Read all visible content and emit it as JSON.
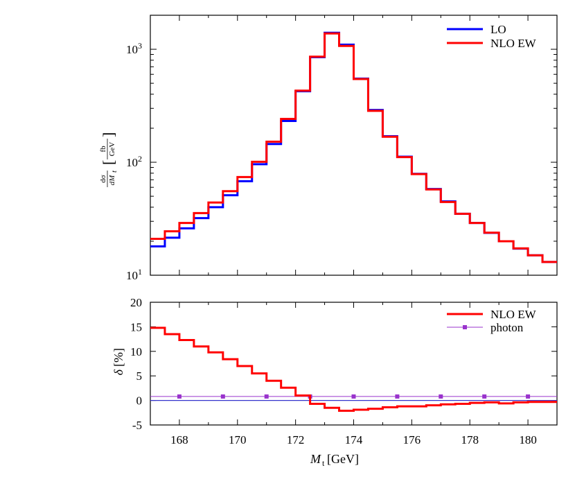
{
  "chart_data": [
    {
      "type": "line",
      "step": true,
      "yscale": "log",
      "x_edges": [
        167,
        167.5,
        168,
        168.5,
        169,
        169.5,
        170,
        170.5,
        171,
        171.5,
        172,
        172.5,
        173,
        173.5,
        174,
        174.5,
        175,
        175.5,
        176,
        176.5,
        177,
        177.5,
        178,
        178.5,
        179,
        179.5,
        180,
        180.5,
        181
      ],
      "xlim": [
        167,
        181
      ],
      "ylim": [
        10,
        2000
      ],
      "ytick_labels": [
        "10^1",
        "10^2",
        "10^3"
      ],
      "ylabel": {
        "frac_num": "dσ",
        "frac_den": "dM",
        "frac_den_sub": "t",
        "bracket_num": "fb",
        "bracket_den": "GeV"
      },
      "legend_position": "top-right",
      "series": [
        {
          "name": "LO",
          "color": "#0000ff",
          "values": [
            18,
            21.5,
            26,
            32,
            40,
            51,
            68,
            96,
            145,
            232,
            425,
            850,
            1400,
            1100,
            550,
            290,
            170,
            112,
            79,
            58,
            45,
            35,
            29,
            23.7,
            20,
            17.2,
            15,
            13.1
          ]
        },
        {
          "name": "NLO EW",
          "color": "#ff0000",
          "values": [
            21,
            24.5,
            29,
            35.5,
            44,
            55.5,
            74,
            101,
            152,
            242,
            430,
            860,
            1380,
            1070,
            545,
            285,
            168,
            111,
            78.5,
            57.5,
            44.5,
            35,
            29,
            23.8,
            20,
            17.3,
            15,
            13.1
          ]
        }
      ]
    },
    {
      "type": "line",
      "step": true,
      "x_edges": [
        167,
        167.5,
        168,
        168.5,
        169,
        169.5,
        170,
        170.5,
        171,
        171.5,
        172,
        172.5,
        173,
        173.5,
        174,
        174.5,
        175,
        175.5,
        176,
        176.5,
        177,
        177.5,
        178,
        178.5,
        179,
        179.5,
        180,
        180.5,
        181
      ],
      "xlim": [
        167,
        181
      ],
      "ylim": [
        -5,
        20
      ],
      "xticks": [
        168,
        170,
        172,
        174,
        176,
        178,
        180
      ],
      "yticks": [
        -5,
        0,
        5,
        10,
        15,
        20
      ],
      "xlabel": {
        "var": "M",
        "sub": "t",
        "unit": "[GeV]"
      },
      "ylabel": {
        "symbol": "δ",
        "unit": "[%]"
      },
      "zero_line_color": "#3333cc",
      "legend_position": "top-right",
      "series": [
        {
          "name": "NLO EW",
          "color": "#ff0000",
          "values": [
            14.8,
            13.5,
            12.3,
            11.0,
            9.8,
            8.4,
            7.0,
            5.5,
            4.0,
            2.6,
            1.0,
            -0.7,
            -1.5,
            -2.1,
            -1.9,
            -1.7,
            -1.4,
            -1.2,
            -1.2,
            -1.0,
            -0.8,
            -0.7,
            -0.5,
            -0.4,
            -0.6,
            -0.4,
            -0.3,
            -0.3
          ]
        },
        {
          "name": "photon",
          "color": "#9933cc",
          "marker": "square",
          "value": 0.8,
          "markers_x": [
            168,
            169.5,
            171,
            172.5,
            174,
            175.5,
            177,
            178.5,
            180
          ]
        }
      ]
    }
  ]
}
